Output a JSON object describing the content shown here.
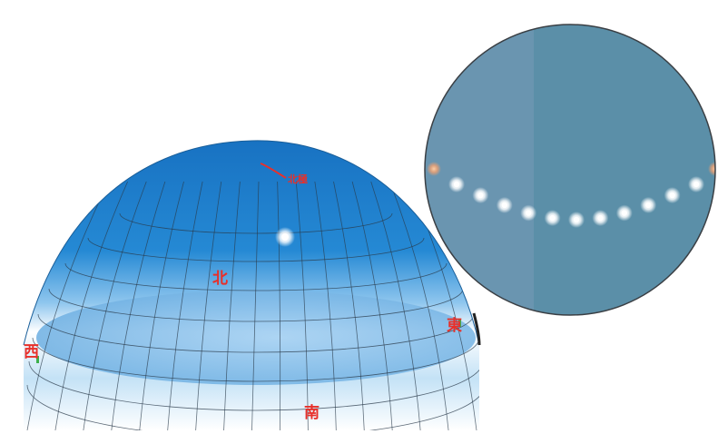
{
  "dome": {
    "directions": {
      "west": "西",
      "north": "北",
      "east": "東",
      "south": "南"
    },
    "pole_label": "北極",
    "colors": {
      "sky_top": "#1a76c4",
      "sky_horizon": "#ffffff",
      "ground_plane": "#8fc3ec",
      "grid_lines": "#2a3a4a",
      "label_red": "#e8302a"
    }
  },
  "photo": {
    "colors": {
      "background": "#5f90aa",
      "star_trail": "#ffffff",
      "rising_setting": "#f0a070"
    },
    "trail_points": 11
  }
}
